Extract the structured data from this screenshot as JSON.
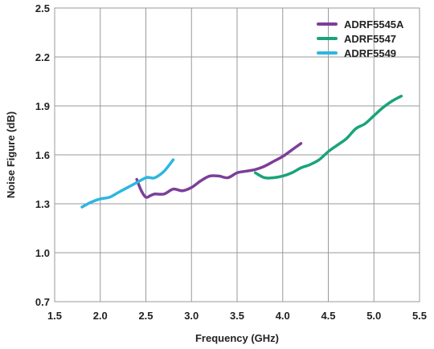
{
  "chart_data": {
    "type": "line",
    "xlabel": "Frequency (GHz)",
    "ylabel": "Noise Figure (dB)",
    "xlim": [
      1.5,
      5.5
    ],
    "ylim": [
      0.7,
      2.5
    ],
    "xticks": [
      1.5,
      2.0,
      2.5,
      3.0,
      3.5,
      4.0,
      4.5,
      5.0,
      5.5
    ],
    "yticks": [
      0.7,
      1.0,
      1.3,
      1.6,
      1.9,
      2.2,
      2.5
    ],
    "xtick_labels": [
      "1.5",
      "2.0",
      "2.5",
      "3.0",
      "3.5",
      "4.0",
      "4.5",
      "5.0",
      "5.5"
    ],
    "ytick_labels": [
      "0.7",
      "1.0",
      "1.3",
      "1.6",
      "1.9",
      "2.2",
      "2.5"
    ],
    "grid": true,
    "legend_position": "top-right",
    "series": [
      {
        "name": "ADRF5545A",
        "color": "#7b3f98",
        "x": [
          2.4,
          2.45,
          2.5,
          2.55,
          2.6,
          2.7,
          2.8,
          2.9,
          3.0,
          3.1,
          3.2,
          3.3,
          3.4,
          3.5,
          3.6,
          3.7,
          3.8,
          3.9,
          4.0,
          4.1,
          4.2
        ],
        "y": [
          1.45,
          1.38,
          1.34,
          1.35,
          1.36,
          1.36,
          1.39,
          1.38,
          1.4,
          1.44,
          1.47,
          1.47,
          1.46,
          1.49,
          1.5,
          1.51,
          1.53,
          1.56,
          1.59,
          1.63,
          1.67
        ]
      },
      {
        "name": "ADRF5547",
        "color": "#1aa37a",
        "x": [
          3.7,
          3.8,
          3.9,
          4.0,
          4.1,
          4.2,
          4.3,
          4.4,
          4.5,
          4.6,
          4.7,
          4.8,
          4.9,
          5.0,
          5.1,
          5.2,
          5.3
        ],
        "y": [
          1.49,
          1.46,
          1.46,
          1.47,
          1.49,
          1.52,
          1.54,
          1.57,
          1.62,
          1.66,
          1.7,
          1.76,
          1.79,
          1.84,
          1.89,
          1.93,
          1.96
        ]
      },
      {
        "name": "ADRF5549",
        "color": "#2db6e0",
        "x": [
          1.8,
          1.9,
          2.0,
          2.1,
          2.2,
          2.3,
          2.4,
          2.5,
          2.55,
          2.6,
          2.7,
          2.8
        ],
        "y": [
          1.28,
          1.31,
          1.33,
          1.34,
          1.37,
          1.4,
          1.43,
          1.46,
          1.46,
          1.46,
          1.5,
          1.57
        ]
      }
    ]
  }
}
